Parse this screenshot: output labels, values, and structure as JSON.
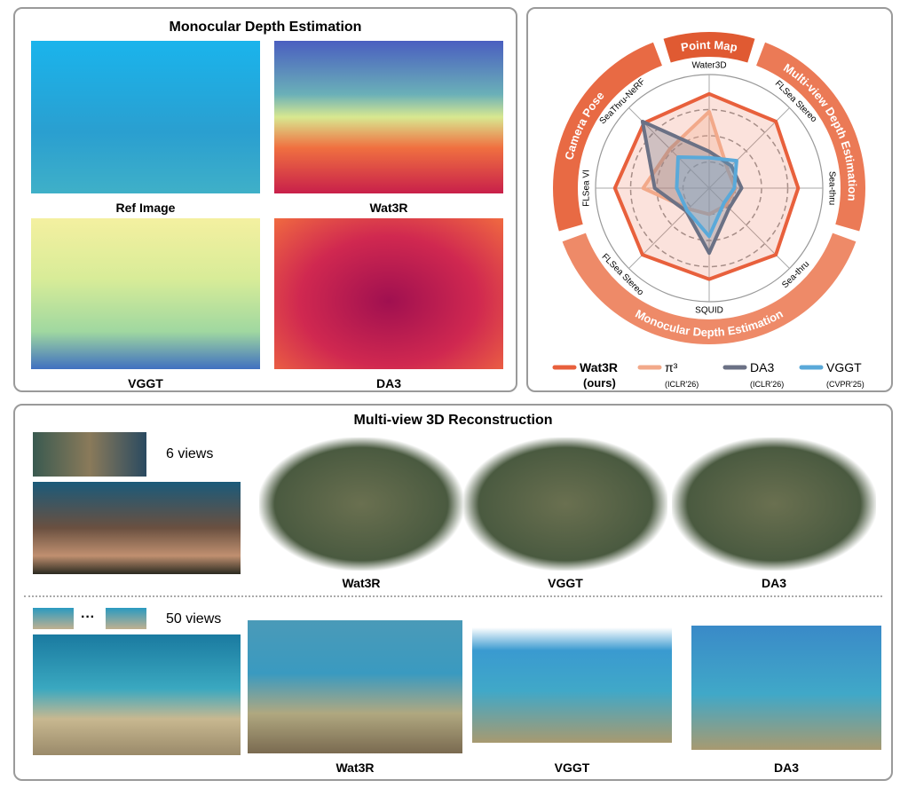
{
  "depth_panel": {
    "title": "Monocular Depth Estimation",
    "captions": [
      "Ref Image",
      "Wat3R",
      "VGGT",
      "DA3"
    ]
  },
  "chart_data": {
    "type": "radar",
    "axes": [
      "Water3D",
      "FLSea Stereo",
      "Sea-thru",
      "Sea-thru",
      "SQUID",
      "FLSea Stereo",
      "FLSea VI",
      "SeaThru-NeRF"
    ],
    "groups": [
      "Point Map",
      "Multi-view Depth Estimation",
      "Monocular Depth Estimation",
      "Camera Pose"
    ],
    "series": [
      {
        "name": "Wat3R",
        "note": "(ours)",
        "color": "#e8603c",
        "values": [
          0.9,
          0.9,
          0.85,
          0.9,
          0.87,
          0.9,
          0.9,
          0.88
        ]
      },
      {
        "name": "π³",
        "note": "(ICLR'26)",
        "color": "#f2a98a",
        "values": [
          0.73,
          0.25,
          0.25,
          0.23,
          0.25,
          0.28,
          0.63,
          0.53
        ]
      },
      {
        "name": "DA3",
        "note": "(ICLR'26)",
        "color": "#6b7185",
        "values": [
          0.35,
          0.3,
          0.31,
          0.27,
          0.62,
          0.31,
          0.52,
          0.9
        ]
      },
      {
        "name": "VGGT",
        "note": "(CVPR'25)",
        "color": "#5aa9d9",
        "values": [
          0.29,
          0.37,
          0.24,
          0.2,
          0.46,
          0.3,
          0.31,
          0.42
        ]
      }
    ]
  },
  "recon_panel": {
    "title": "Multi-view 3D Reconstruction",
    "rows": [
      {
        "views": "6 views",
        "captions": [
          "Wat3R",
          "VGGT",
          "DA3"
        ]
      },
      {
        "views": "50 views",
        "ellipsis": "···",
        "captions": [
          "Wat3R",
          "VGGT",
          "DA3"
        ]
      }
    ]
  }
}
